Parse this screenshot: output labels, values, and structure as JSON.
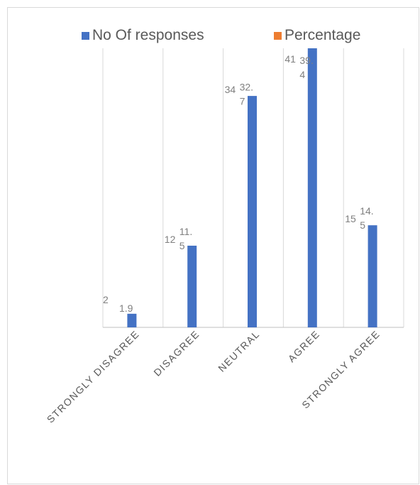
{
  "chart_data": {
    "type": "bar",
    "title": "",
    "xlabel": "",
    "ylabel": "",
    "categories": [
      "STRONGLY DISAGREE",
      "DISAGREE",
      "NEUTRAL",
      "AGREE",
      "STRONGLY AGREE"
    ],
    "series": [
      {
        "name": "No Of responses",
        "color": "#4472c4",
        "values": [
          2,
          12,
          34,
          41,
          15
        ],
        "labels": [
          "2",
          "12",
          "34",
          "41",
          "15"
        ]
      },
      {
        "name": "Percentage",
        "color": "#ed7d31",
        "values": [
          1.9,
          11.5,
          32.7,
          39.4,
          14.5
        ],
        "labels": [
          "1.9",
          "11.5",
          "32.7",
          "39.4",
          "14.5"
        ]
      }
    ],
    "ylim": [
      0,
      41
    ],
    "grid": true,
    "legend": "top"
  }
}
